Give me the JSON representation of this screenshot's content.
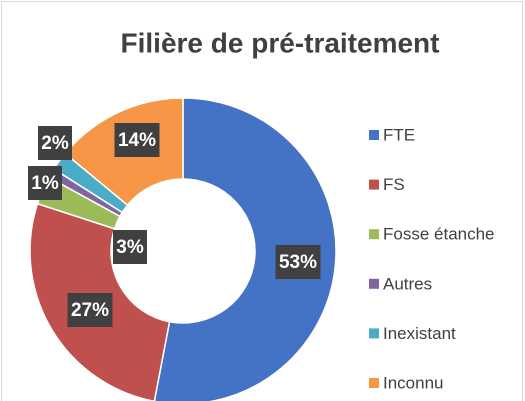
{
  "chart_data": {
    "type": "donut",
    "title": "Filière de pré-traitement",
    "categories": [
      "FTE",
      "FS",
      "Fosse étanche",
      "Autres",
      "Inexistant",
      "Inconnu"
    ],
    "values": [
      53,
      27,
      3,
      1,
      2,
      14
    ],
    "value_labels": [
      "53%",
      "27%",
      "3%",
      "1%",
      "2%",
      "14%"
    ],
    "colors": [
      "#4472c4",
      "#c0504d",
      "#9bbb59",
      "#8064a2",
      "#4bacc6",
      "#f79646"
    ]
  }
}
